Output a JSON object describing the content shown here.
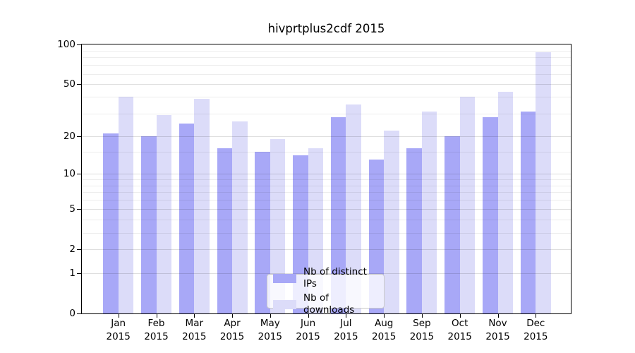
{
  "title": "hivprtplus2cdf 2015",
  "chart_data": {
    "type": "bar",
    "title": "hivprtplus2cdf 2015",
    "categories": [
      "Jan",
      "Feb",
      "Mar",
      "Apr",
      "May",
      "Jun",
      "Jul",
      "Aug",
      "Sep",
      "Oct",
      "Nov",
      "Dec"
    ],
    "xtick_year": "2015",
    "series": [
      {
        "name": "Nb of distinct IPs",
        "color": "#a8a8f7",
        "values": [
          21,
          20,
          25,
          16,
          15,
          14,
          28,
          13,
          16,
          20,
          28,
          31
        ]
      },
      {
        "name": "Nb of downloads",
        "color": "#dcdcf9",
        "values": [
          40,
          29,
          39,
          26,
          19,
          16,
          35,
          22,
          31,
          40,
          44,
          87
        ]
      }
    ],
    "yscale": "log1p",
    "ylim": [
      0,
      100
    ],
    "yticks": [
      100,
      50,
      20,
      10,
      5,
      2,
      1,
      0
    ],
    "minor_gridlines": [
      3,
      4,
      6,
      7,
      8,
      9,
      15,
      30,
      40,
      60,
      70,
      80,
      90
    ],
    "major_gridlines": [
      1,
      2,
      5,
      10,
      20,
      50
    ],
    "grid": true,
    "legend_position": "bottom-center",
    "background_color": "#ffffff",
    "spine_color": "#000000"
  },
  "legend": {
    "items": [
      {
        "label": "Nb of distinct IPs",
        "color": "#a8a8f7"
      },
      {
        "label": "Nb of downloads",
        "color": "#dcdcf9"
      }
    ]
  }
}
